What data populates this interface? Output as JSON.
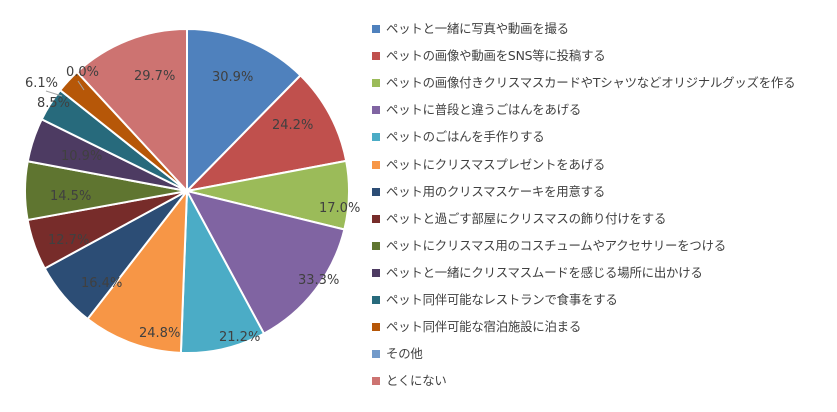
{
  "chart_data": {
    "type": "pie",
    "title": "",
    "values_unit": "%",
    "slices": [
      {
        "label": "ペットと一緒に写真や動画を撮る",
        "value": 30.9,
        "display": "30.9%",
        "color": "#4f81bd"
      },
      {
        "label": "ペットの画像や動画をSNS等に投稿する",
        "value": 24.2,
        "display": "24.2%",
        "color": "#c0504d"
      },
      {
        "label": "ペットの画像付きクリスマスカードやTシャツなどオリジナルグッズを作る",
        "value": 17.0,
        "display": "17.0%",
        "color": "#9bbb59"
      },
      {
        "label": "ペットに普段と違うごはんをあげる",
        "value": 33.3,
        "display": "33.3%",
        "color": "#8064a2"
      },
      {
        "label": "ペットのごはんを手作りする",
        "value": 21.2,
        "display": "21.2%",
        "color": "#4bacc6"
      },
      {
        "label": "ペットにクリスマスプレゼントをあげる",
        "value": 24.8,
        "display": "24.8%",
        "color": "#f79646"
      },
      {
        "label": "ペット用のクリスマスケーキを用意する",
        "value": 16.4,
        "display": "16.4%",
        "color": "#2c4d75"
      },
      {
        "label": "ペットと過ごす部屋にクリスマスの飾り付けをする",
        "value": 12.7,
        "display": "12.7%",
        "color": "#772c2a"
      },
      {
        "label": "ペットにクリスマス用のコスチュームやアクセサリーをつける",
        "value": 14.5,
        "display": "14.5%",
        "color": "#5f7530"
      },
      {
        "label": "ペットと一緒にクリスマスムードを感じる場所に出かける",
        "value": 10.9,
        "display": "10.9%",
        "color": "#4d3b62"
      },
      {
        "label": "ペット同伴可能なレストランで食事をする",
        "value": 8.5,
        "display": "8.5%",
        "color": "#276a7c"
      },
      {
        "label": "ペット同伴可能な宿泊施設に泊まる",
        "value": 6.1,
        "display": "6.1%",
        "color": "#b65708"
      },
      {
        "label": "その他",
        "value": 0.0,
        "display": "0.0%",
        "color": "#729aca"
      },
      {
        "label": "とくにない",
        "value": 29.7,
        "display": "29.7%",
        "color": "#cd7371"
      }
    ],
    "legend_position": "right"
  }
}
